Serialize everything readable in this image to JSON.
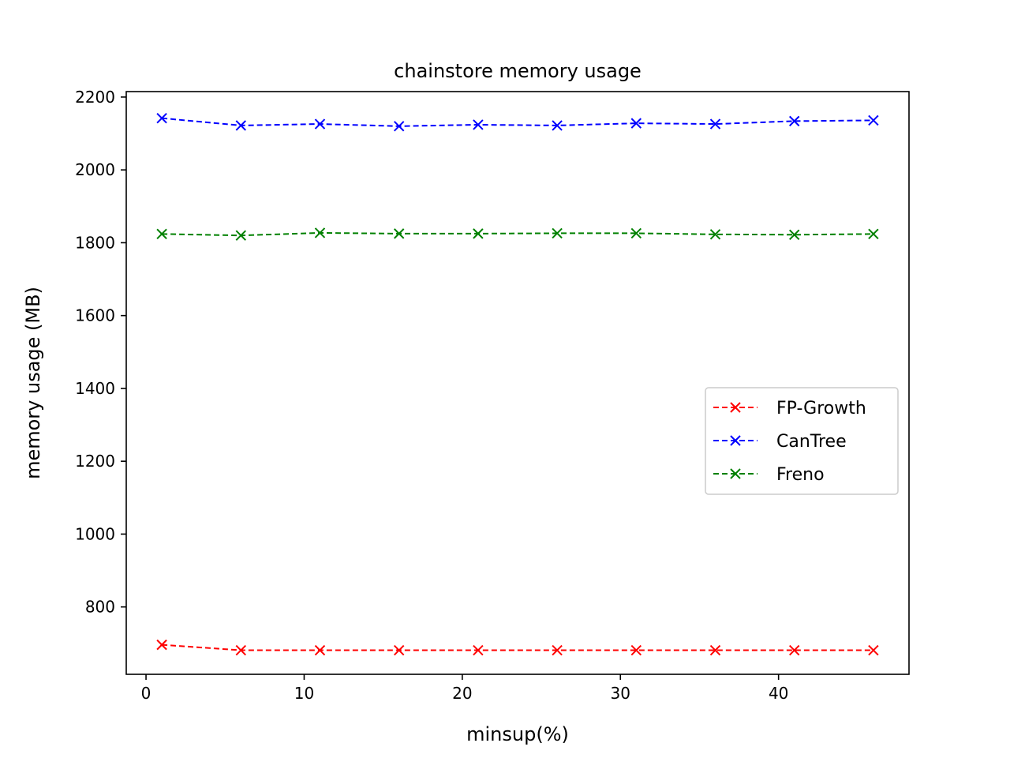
{
  "chart_data": {
    "type": "line",
    "title": "chainstore memory usage",
    "xlabel": "minsup(%)",
    "ylabel": "memory usage (MB)",
    "xlim": [
      -1.25,
      48.25
    ],
    "ylim": [
      615,
      2215
    ],
    "xticks": [
      0,
      10,
      20,
      30,
      40
    ],
    "yticks": [
      800,
      1000,
      1200,
      1400,
      1600,
      1800,
      2000,
      2200
    ],
    "x": [
      1,
      6,
      11,
      16,
      21,
      26,
      31,
      36,
      41,
      46
    ],
    "grid": false,
    "legend_position": "center-right",
    "series": [
      {
        "name": "FP-Growth",
        "color": "#ff0000",
        "line_style": "dashed",
        "marker": "x",
        "values": [
          696,
          681,
          681,
          681,
          681,
          681,
          681,
          681,
          681,
          681
        ]
      },
      {
        "name": "CanTree",
        "color": "#0000ff",
        "line_style": "dashed",
        "marker": "x",
        "values": [
          2142,
          2122,
          2126,
          2120,
          2124,
          2122,
          2128,
          2126,
          2134,
          2136
        ]
      },
      {
        "name": "Freno",
        "color": "#008000",
        "line_style": "dashed",
        "marker": "x",
        "values": [
          1824,
          1820,
          1827,
          1825,
          1825,
          1826,
          1826,
          1823,
          1822,
          1824
        ]
      }
    ]
  }
}
